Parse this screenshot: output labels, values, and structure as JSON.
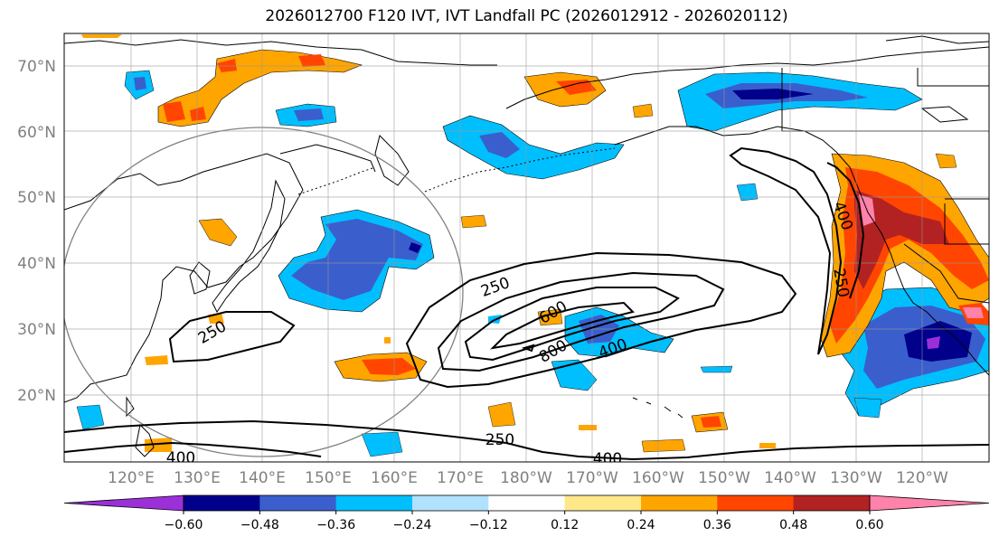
{
  "title": "2026012700 F120 IVT, IVT Landfall PC (2026012912 - 2026020112)",
  "lat_labels": [
    "70°N",
    "60°N",
    "50°N",
    "40°N",
    "30°N",
    "20°N"
  ],
  "lon_labels": [
    "120°E",
    "130°E",
    "140°E",
    "150°E",
    "160°E",
    "170°E",
    "180°W",
    "170°W",
    "160°W",
    "150°W",
    "140°W",
    "130°W",
    "120°W"
  ],
  "colorbar": {
    "tick_labels": [
      "−0.60",
      "−0.48",
      "−0.36",
      "−0.24",
      "−0.12",
      "0.12",
      "0.24",
      "0.36",
      "0.48",
      "0.60"
    ],
    "tick_values": [
      -0.6,
      -0.48,
      -0.36,
      -0.24,
      -0.12,
      0.12,
      0.24,
      0.36,
      0.48,
      0.6
    ],
    "colors": [
      "#9b30d8",
      "#00008b",
      "#3a5fcd",
      "#00bfff",
      "#b0e2ff",
      "#ffffff",
      "#ffe88a",
      "#ffa500",
      "#ff4500",
      "#b22222",
      "#ff82ab"
    ]
  },
  "contour_labels": [
    {
      "text": "250",
      "role": "contour-label-250-east-pacific"
    },
    {
      "text": "600",
      "role": "contour-label-600"
    },
    {
      "text": "800",
      "role": "contour-label-800"
    },
    {
      "text": "400",
      "role": "contour-label-400-center"
    },
    {
      "text": "250",
      "role": "contour-label-250-west"
    },
    {
      "text": "250",
      "role": "contour-label-250-south"
    },
    {
      "text": "400",
      "role": "contour-label-400-south"
    },
    {
      "text": "400",
      "role": "contour-label-400-coast"
    },
    {
      "text": "250",
      "role": "contour-label-250-coast"
    },
    {
      "text": "400",
      "role": "contour-label-400-sw"
    }
  ]
}
